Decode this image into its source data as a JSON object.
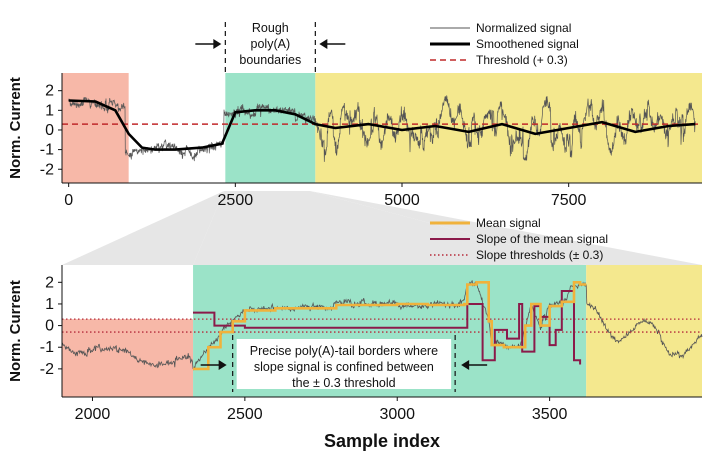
{
  "chart_data": [
    {
      "type": "line",
      "xlabel": "",
      "ylabel": "Norm. Current",
      "xlim": [
        -100,
        9500
      ],
      "ylim": [
        -2.7,
        2.9
      ],
      "xticks": [
        0,
        2500,
        5000,
        7500
      ],
      "yticks": [
        -2,
        -1,
        0,
        1,
        2
      ],
      "threshold": 0.3,
      "regions": [
        {
          "from": -100,
          "to": 900,
          "color": "#f7b8a8"
        },
        {
          "from": 2350,
          "to": 3700,
          "color": "#9be3c8"
        },
        {
          "from": 3700,
          "to": 9500,
          "color": "#f4e88e"
        }
      ],
      "boundaries": [
        2350,
        3700
      ],
      "annotation": [
        "Rough",
        "poly(A)",
        "boundaries"
      ],
      "series": [
        {
          "name": "Normalized signal",
          "color": "#555555",
          "style": "thin"
        },
        {
          "name": "Smoothened signal",
          "color": "#000000",
          "style": "thick",
          "x": [
            0,
            400,
            700,
            900,
            1100,
            1300,
            1600,
            2000,
            2300,
            2500,
            2800,
            3100,
            3400,
            3700,
            4000,
            4500,
            5000,
            5500,
            6000,
            6500,
            7000,
            7500,
            8000,
            8500,
            9000,
            9400
          ],
          "values": [
            1.5,
            1.45,
            1.0,
            -0.2,
            -0.9,
            -1.0,
            -1.0,
            -0.9,
            -0.7,
            0.9,
            1.0,
            1.0,
            0.8,
            0.3,
            0.1,
            0.3,
            0.0,
            0.2,
            -0.1,
            0.3,
            -0.2,
            0.1,
            0.4,
            -0.1,
            0.2,
            0.3
          ]
        },
        {
          "name": "Threshold (+ 0.3)",
          "color": "#c0282a",
          "style": "dashed"
        }
      ]
    },
    {
      "type": "line",
      "xlabel": "Sample index",
      "ylabel": "Norm. Current",
      "xlim": [
        1900,
        4000
      ],
      "ylim": [
        -3.3,
        2.8
      ],
      "xticks": [
        2000,
        2500,
        3000,
        3500
      ],
      "yticks": [
        -2,
        -1,
        0,
        1,
        2
      ],
      "slope_thresholds": [
        0.3,
        -0.3
      ],
      "regions": [
        {
          "from": 1900,
          "to": 2330,
          "color": "#f7b8a8"
        },
        {
          "from": 2330,
          "to": 3620,
          "color": "#9be3c8"
        },
        {
          "from": 3620,
          "to": 4000,
          "color": "#f4e88e"
        }
      ],
      "borders": [
        2460,
        3190
      ],
      "annotation": [
        "Precise poly(A)-tail borders where",
        "slope signal is confined between",
        "the ± 0.3 threshold"
      ],
      "series": [
        {
          "name": "Mean signal",
          "color": "#f0b23c",
          "x": [
            2330,
            2380,
            2420,
            2460,
            2500,
            2600,
            2800,
            3000,
            3100,
            3150,
            3200,
            3220,
            3230,
            3260,
            3300,
            3310,
            3350,
            3380,
            3400,
            3420,
            3440,
            3470,
            3500,
            3540,
            3580,
            3600,
            3620
          ],
          "values": [
            -2.0,
            -1.0,
            -0.3,
            0.2,
            0.7,
            0.8,
            0.95,
            1.0,
            0.95,
            0.95,
            0.95,
            1.0,
            1.9,
            2.0,
            0.2,
            -0.9,
            -1.0,
            -1.0,
            -1.0,
            0.0,
            1.0,
            0.0,
            0.9,
            1.1,
            2.0,
            1.9,
            1.9
          ]
        },
        {
          "name": "Slope of the mean signal",
          "color": "#8b1a4a",
          "x": [
            2330,
            2370,
            2400,
            2420,
            2500,
            2800,
            3000,
            3150,
            3200,
            3230,
            3280,
            3310,
            3320,
            3360,
            3400,
            3410,
            3430,
            3450,
            3470,
            3500,
            3520,
            3540,
            3580,
            3600
          ],
          "values": [
            0.6,
            0.6,
            0.0,
            0.0,
            -0.1,
            -0.1,
            -0.1,
            -0.1,
            -0.1,
            1.0,
            -1.6,
            -1.6,
            -0.2,
            -0.6,
            1.0,
            -1.2,
            -1.2,
            0.9,
            0.4,
            -0.9,
            -0.2,
            1.6,
            -1.6,
            -1.8
          ]
        },
        {
          "name": "Slope thresholds (± 0.3)",
          "color": "#b52a3a"
        },
        {
          "name": "Normalized signal",
          "color": "#555555"
        }
      ]
    }
  ]
}
